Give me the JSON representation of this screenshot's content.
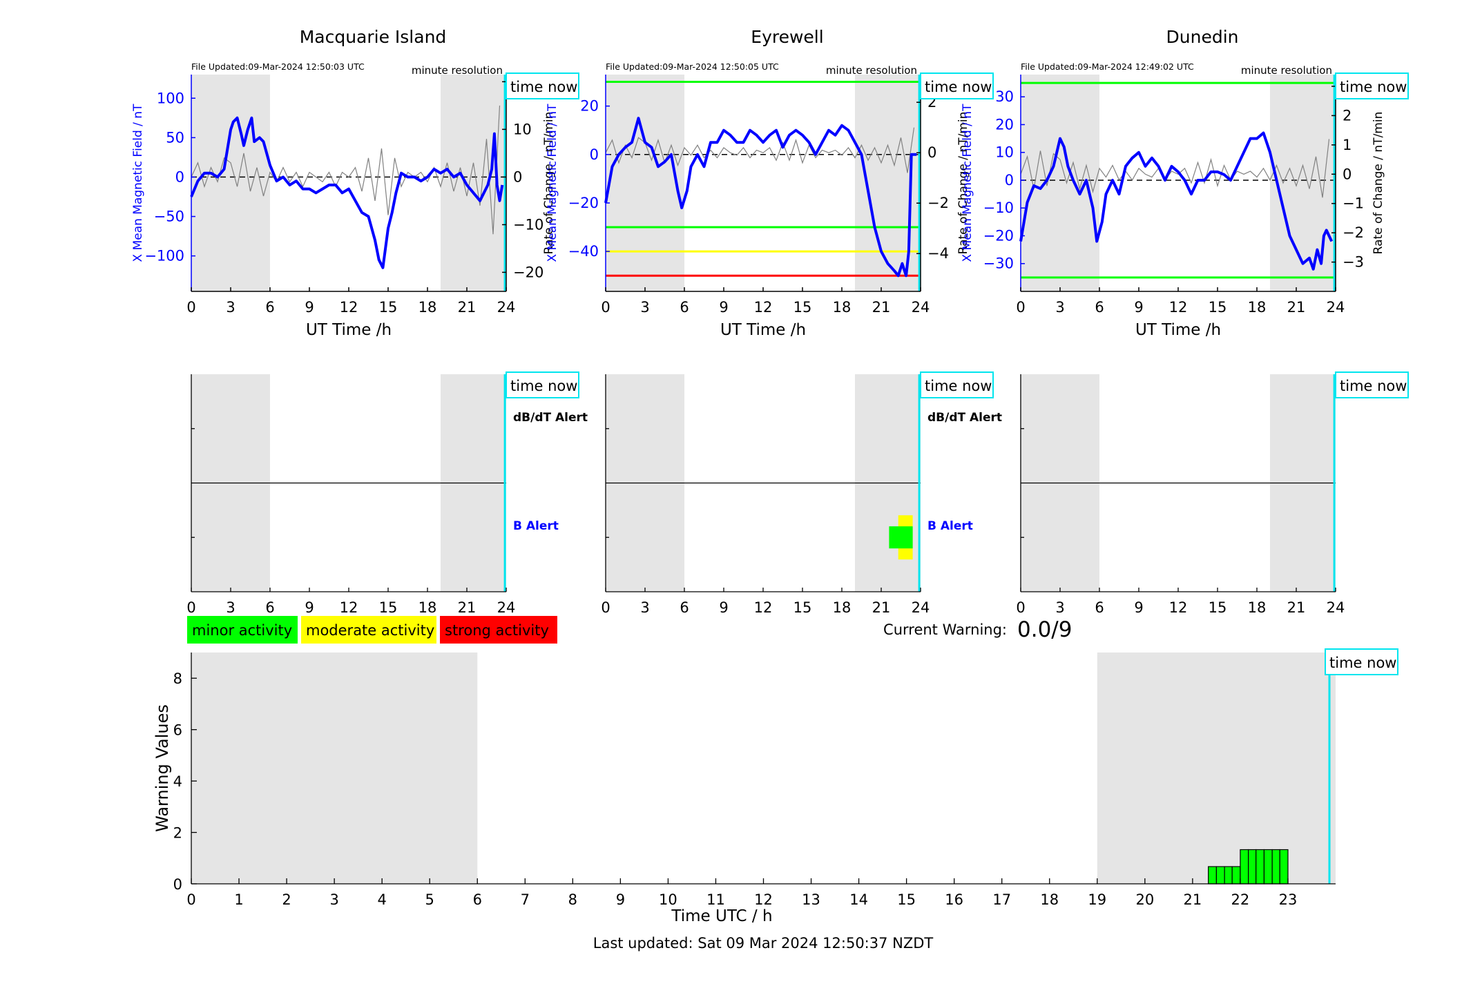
{
  "labels": {
    "file_updated_prefix": "File Updated:",
    "minute_resolution": "minute resolution",
    "time_now": "time now",
    "ut_xlabel": "UT Time /h",
    "field_ylabel": "X Mean Magnetic Field / nT",
    "rate_ylabel": "Rate of Change / nT/min",
    "dbdt_alert": "dB/dT Alert",
    "b_alert": "B Alert",
    "current_warning_label": "Current Warning:",
    "current_warning_value": "0.0/9",
    "last_updated": "Last updated: Sat 09 Mar 2024 12:50:37 NZDT"
  },
  "legend": [
    {
      "label": "minor activity",
      "color": "#00ff00"
    },
    {
      "label": "moderate activity",
      "color": "#ffff00"
    },
    {
      "label": "strong activity",
      "color": "#ff0000"
    }
  ],
  "colors": {
    "field": "#0000ff",
    "rate": "#808080",
    "night_shade": "#e5e5e5",
    "time_now": "#00e5ee",
    "minor": "#00ff00",
    "moderate": "#ffff00",
    "strong": "#ff0000"
  },
  "chart_data": [
    {
      "type": "line",
      "title": "Macquarie Island",
      "file_updated": "09-Mar-2024 12:50:03 UTC",
      "xlabel": "UT Time /h",
      "ylabel": "X Mean Magnetic Field / nT",
      "y2label": "Rate of Change / nT/min",
      "xlim": [
        0,
        24
      ],
      "ylim": [
        -145,
        130
      ],
      "y2lim": [
        -24,
        21.5
      ],
      "xticks": [
        0,
        3,
        6,
        9,
        12,
        15,
        18,
        21,
        24
      ],
      "yticks": [
        -100,
        -50,
        0,
        50,
        100
      ],
      "y2ticks": [
        -20,
        -10,
        0,
        10,
        20
      ],
      "shaded_hours": [
        [
          0,
          6
        ],
        [
          19,
          24
        ]
      ],
      "time_now": 23.9,
      "thresholds": [],
      "series": [
        {
          "name": "X Mean Magnetic Field / nT",
          "axis": "left",
          "x": [
            0,
            0.5,
            1,
            1.5,
            2,
            2.5,
            3,
            3.2,
            3.5,
            3.8,
            4,
            4.3,
            4.6,
            4.8,
            5.2,
            5.5,
            6,
            6.5,
            7,
            7.5,
            8,
            8.5,
            9,
            9.5,
            10,
            10.5,
            11,
            11.5,
            12,
            12.5,
            13,
            13.5,
            14,
            14.3,
            14.6,
            14.8,
            15,
            15.3,
            15.6,
            16,
            16.5,
            17,
            17.5,
            18,
            18.5,
            19,
            19.5,
            20,
            20.5,
            21,
            21.5,
            22,
            22.3,
            22.6,
            22.9,
            23.1,
            23.3,
            23.5,
            23.7
          ],
          "y": [
            -25,
            -5,
            5,
            5,
            0,
            10,
            60,
            70,
            75,
            55,
            40,
            60,
            75,
            45,
            50,
            45,
            15,
            -5,
            0,
            -10,
            -5,
            -15,
            -15,
            -20,
            -15,
            -10,
            -10,
            -20,
            -15,
            -30,
            -45,
            -50,
            -80,
            -105,
            -115,
            -90,
            -65,
            -45,
            -20,
            5,
            0,
            0,
            -5,
            0,
            10,
            5,
            10,
            0,
            5,
            -10,
            -20,
            -30,
            -20,
            -10,
            10,
            55,
            -10,
            -30,
            -10
          ]
        },
        {
          "name": "Rate of Change / nT/min",
          "axis": "right",
          "x": [
            0,
            0.5,
            1,
            1.5,
            2,
            2.5,
            3,
            3.5,
            4,
            4.5,
            5,
            5.5,
            6,
            6.5,
            7,
            7.5,
            8,
            8.5,
            9,
            9.5,
            10,
            10.5,
            11,
            11.5,
            12,
            12.5,
            13,
            13.5,
            14,
            14.5,
            15,
            15.5,
            16,
            16.5,
            17,
            17.5,
            18,
            18.5,
            19,
            19.5,
            20,
            20.5,
            21,
            21.5,
            22,
            22.5,
            23,
            23.5
          ],
          "y": [
            0,
            3,
            -2,
            2,
            -1,
            4,
            3,
            -2,
            5,
            -3,
            2,
            -4,
            1,
            -1,
            2,
            -1,
            1,
            -2,
            1,
            0,
            -1,
            1,
            -2,
            1,
            0,
            2,
            -3,
            4,
            -5,
            6,
            -8,
            4,
            -2,
            1,
            0,
            1,
            -1,
            2,
            -2,
            3,
            -3,
            2,
            -4,
            3,
            -6,
            8,
            -12,
            15
          ]
        }
      ],
      "alerts": []
    },
    {
      "type": "line",
      "title": "Eyrewell",
      "file_updated": "09-Mar-2024 12:50:05 UTC",
      "xlabel": "UT Time /h",
      "ylabel": "X Mean Magnetic Field / nT",
      "y2label": "Rate of Change / nT/min",
      "xlim": [
        0,
        24
      ],
      "ylim": [
        -56.5,
        33
      ],
      "y2lim": [
        -5.5,
        3.1
      ],
      "xticks": [
        0,
        3,
        6,
        9,
        12,
        15,
        18,
        21,
        24
      ],
      "yticks": [
        -40,
        -20,
        0,
        20
      ],
      "y2ticks": [
        -4,
        -2,
        0,
        2
      ],
      "shaded_hours": [
        [
          0,
          6
        ],
        [
          19,
          24
        ]
      ],
      "time_now": 23.9,
      "thresholds": [
        {
          "value": 30,
          "level": "minor"
        },
        {
          "value": -30,
          "level": "minor"
        },
        {
          "value": -40,
          "level": "moderate"
        },
        {
          "value": -50,
          "level": "strong"
        }
      ],
      "series": [
        {
          "name": "X Mean Magnetic Field / nT",
          "axis": "left",
          "x": [
            0,
            0.5,
            1,
            1.5,
            2,
            2.5,
            3,
            3.5,
            4,
            4.5,
            5,
            5.5,
            5.8,
            6.2,
            6.5,
            7,
            7.5,
            8,
            8.5,
            9,
            9.5,
            10,
            10.5,
            11,
            11.5,
            12,
            12.5,
            13,
            13.5,
            14,
            14.5,
            15,
            15.5,
            16,
            16.5,
            17,
            17.5,
            18,
            18.5,
            19,
            19.5,
            20,
            20.5,
            21,
            21.5,
            22,
            22.3,
            22.6,
            22.9,
            23.1,
            23.3,
            23.5,
            23.7
          ],
          "y": [
            -20,
            -5,
            0,
            3,
            5,
            15,
            5,
            3,
            -5,
            -3,
            0,
            -15,
            -22,
            -15,
            -5,
            0,
            -5,
            5,
            5,
            10,
            8,
            5,
            5,
            10,
            8,
            5,
            8,
            10,
            3,
            8,
            10,
            8,
            5,
            0,
            5,
            10,
            8,
            12,
            10,
            5,
            0,
            -15,
            -30,
            -40,
            -45,
            -48,
            -50,
            -45,
            -50,
            -40,
            0,
            0,
            0
          ]
        },
        {
          "name": "Rate of Change / nT/min",
          "axis": "right",
          "x": [
            0,
            0.5,
            1,
            1.5,
            2,
            2.5,
            3,
            3.5,
            4,
            4.5,
            5,
            5.5,
            6,
            6.5,
            7,
            7.5,
            8,
            8.5,
            9,
            9.5,
            10,
            10.5,
            11,
            11.5,
            12,
            12.5,
            13,
            13.5,
            14,
            14.5,
            15,
            15.5,
            16,
            16.5,
            17,
            17.5,
            18,
            18.5,
            19,
            19.5,
            20,
            20.5,
            21,
            21.5,
            22,
            22.5,
            23,
            23.5
          ],
          "y": [
            0,
            0.5,
            -0.4,
            0.3,
            -0.2,
            0.6,
            0.4,
            -0.3,
            0.5,
            -0.4,
            0.3,
            -0.5,
            0.2,
            -0.1,
            0.3,
            -0.2,
            0.1,
            -0.2,
            0.2,
            0,
            -0.1,
            0.2,
            -0.2,
            0.1,
            0,
            0.2,
            -0.3,
            0.4,
            -0.3,
            0.5,
            -0.4,
            0.3,
            -0.2,
            0.1,
            0,
            0.1,
            -0.1,
            0.2,
            -0.2,
            0.3,
            -0.3,
            0.2,
            -0.4,
            0.3,
            -0.5,
            0.6,
            -0.8,
            1.0
          ]
        }
      ],
      "alerts": [
        {
          "row": "b",
          "level": "moderate",
          "x_start": 22.3,
          "x_end": 23.4
        },
        {
          "row": "b",
          "level": "minor",
          "x_start": 21.6,
          "x_end": 23.4
        }
      ]
    },
    {
      "type": "line",
      "title": "Dunedin",
      "file_updated": "09-Mar-2024 12:49:02 UTC",
      "xlabel": "UT Time /h",
      "ylabel": "X Mean Magnetic Field / nT",
      "y2label": "Rate of Change / nT/min",
      "xlim": [
        0,
        24
      ],
      "ylim": [
        -40,
        38
      ],
      "y2lim": [
        -4,
        3.4
      ],
      "xticks": [
        0,
        3,
        6,
        9,
        12,
        15,
        18,
        21,
        24
      ],
      "yticks": [
        -30,
        -20,
        -10,
        0,
        10,
        20,
        30
      ],
      "y2ticks": [
        -3,
        -2,
        -1,
        0,
        1,
        2,
        3
      ],
      "shaded_hours": [
        [
          0,
          6
        ],
        [
          19,
          24
        ]
      ],
      "time_now": 23.9,
      "thresholds": [
        {
          "value": 35,
          "level": "minor"
        },
        {
          "value": -35,
          "level": "minor"
        }
      ],
      "series": [
        {
          "name": "X Mean Magnetic Field / nT",
          "axis": "left",
          "x": [
            0,
            0.5,
            1,
            1.5,
            2,
            2.5,
            3,
            3.3,
            3.6,
            4,
            4.5,
            5,
            5.5,
            5.8,
            6.2,
            6.5,
            7,
            7.5,
            8,
            8.5,
            9,
            9.5,
            10,
            10.5,
            11,
            11.5,
            12,
            12.5,
            13,
            13.5,
            14,
            14.5,
            15,
            15.5,
            16,
            16.5,
            17,
            17.5,
            18,
            18.5,
            19,
            19.5,
            20,
            20.5,
            21,
            21.5,
            22,
            22.3,
            22.6,
            22.9,
            23.1,
            23.3,
            23.5,
            23.7
          ],
          "y": [
            -22,
            -8,
            -2,
            -3,
            0,
            5,
            15,
            12,
            5,
            0,
            -5,
            0,
            -10,
            -22,
            -15,
            -5,
            0,
            -5,
            5,
            8,
            10,
            5,
            8,
            5,
            0,
            5,
            3,
            0,
            -5,
            0,
            0,
            3,
            3,
            2,
            0,
            5,
            10,
            15,
            15,
            17,
            10,
            0,
            -10,
            -20,
            -25,
            -30,
            -28,
            -32,
            -25,
            -30,
            -20,
            -18,
            -20,
            -22
          ]
        },
        {
          "name": "Rate of Change / nT/min",
          "axis": "right",
          "x": [
            0,
            0.5,
            1,
            1.5,
            2,
            2.5,
            3,
            3.5,
            4,
            4.5,
            5,
            5.5,
            6,
            6.5,
            7,
            7.5,
            8,
            8.5,
            9,
            9.5,
            10,
            10.5,
            11,
            11.5,
            12,
            12.5,
            13,
            13.5,
            14,
            14.5,
            15,
            15.5,
            16,
            16.5,
            17,
            17.5,
            18,
            18.5,
            19,
            19.5,
            20,
            20.5,
            21,
            21.5,
            22,
            22.5,
            23,
            23.5
          ],
          "y": [
            0,
            0.6,
            -0.5,
            0.8,
            -0.4,
            0.7,
            0.5,
            -0.3,
            0.4,
            -0.5,
            0.3,
            -0.6,
            0.2,
            -0.1,
            0.3,
            -0.2,
            0.1,
            -0.2,
            0.2,
            0,
            -0.1,
            0.2,
            -0.2,
            0.1,
            0,
            0.2,
            -0.3,
            0.4,
            -0.3,
            0.5,
            -0.4,
            0.3,
            -0.2,
            0.1,
            0,
            0.1,
            -0.1,
            0.2,
            -0.2,
            0.3,
            -0.3,
            0.2,
            -0.4,
            0.3,
            -0.5,
            0.6,
            -0.8,
            1.2
          ]
        }
      ],
      "alerts": []
    },
    {
      "type": "bar",
      "title": "",
      "xlabel": "Time UTC / h",
      "ylabel": "Warning Values",
      "xlim": [
        0,
        24
      ],
      "ylim": [
        0,
        9
      ],
      "xticks": [
        0,
        1,
        2,
        3,
        4,
        5,
        6,
        7,
        8,
        9,
        10,
        11,
        12,
        13,
        14,
        15,
        16,
        17,
        18,
        19,
        20,
        21,
        22,
        23
      ],
      "yticks": [
        0,
        2,
        4,
        6,
        8
      ],
      "shaded_hours": [
        [
          0,
          6
        ],
        [
          19,
          24
        ]
      ],
      "time_now": 23.87,
      "bars": [
        {
          "x_start": 21.33,
          "x_end": 21.5,
          "value": 0.67
        },
        {
          "x_start": 21.5,
          "x_end": 21.67,
          "value": 0.67
        },
        {
          "x_start": 21.67,
          "x_end": 21.83,
          "value": 0.67
        },
        {
          "x_start": 21.83,
          "x_end": 22.0,
          "value": 0.67
        },
        {
          "x_start": 22.0,
          "x_end": 22.17,
          "value": 1.33
        },
        {
          "x_start": 22.17,
          "x_end": 22.33,
          "value": 1.33
        },
        {
          "x_start": 22.33,
          "x_end": 22.5,
          "value": 1.33
        },
        {
          "x_start": 22.5,
          "x_end": 22.67,
          "value": 1.33
        },
        {
          "x_start": 22.67,
          "x_end": 22.83,
          "value": 1.33
        },
        {
          "x_start": 22.83,
          "x_end": 23.0,
          "value": 1.33
        }
      ]
    }
  ]
}
